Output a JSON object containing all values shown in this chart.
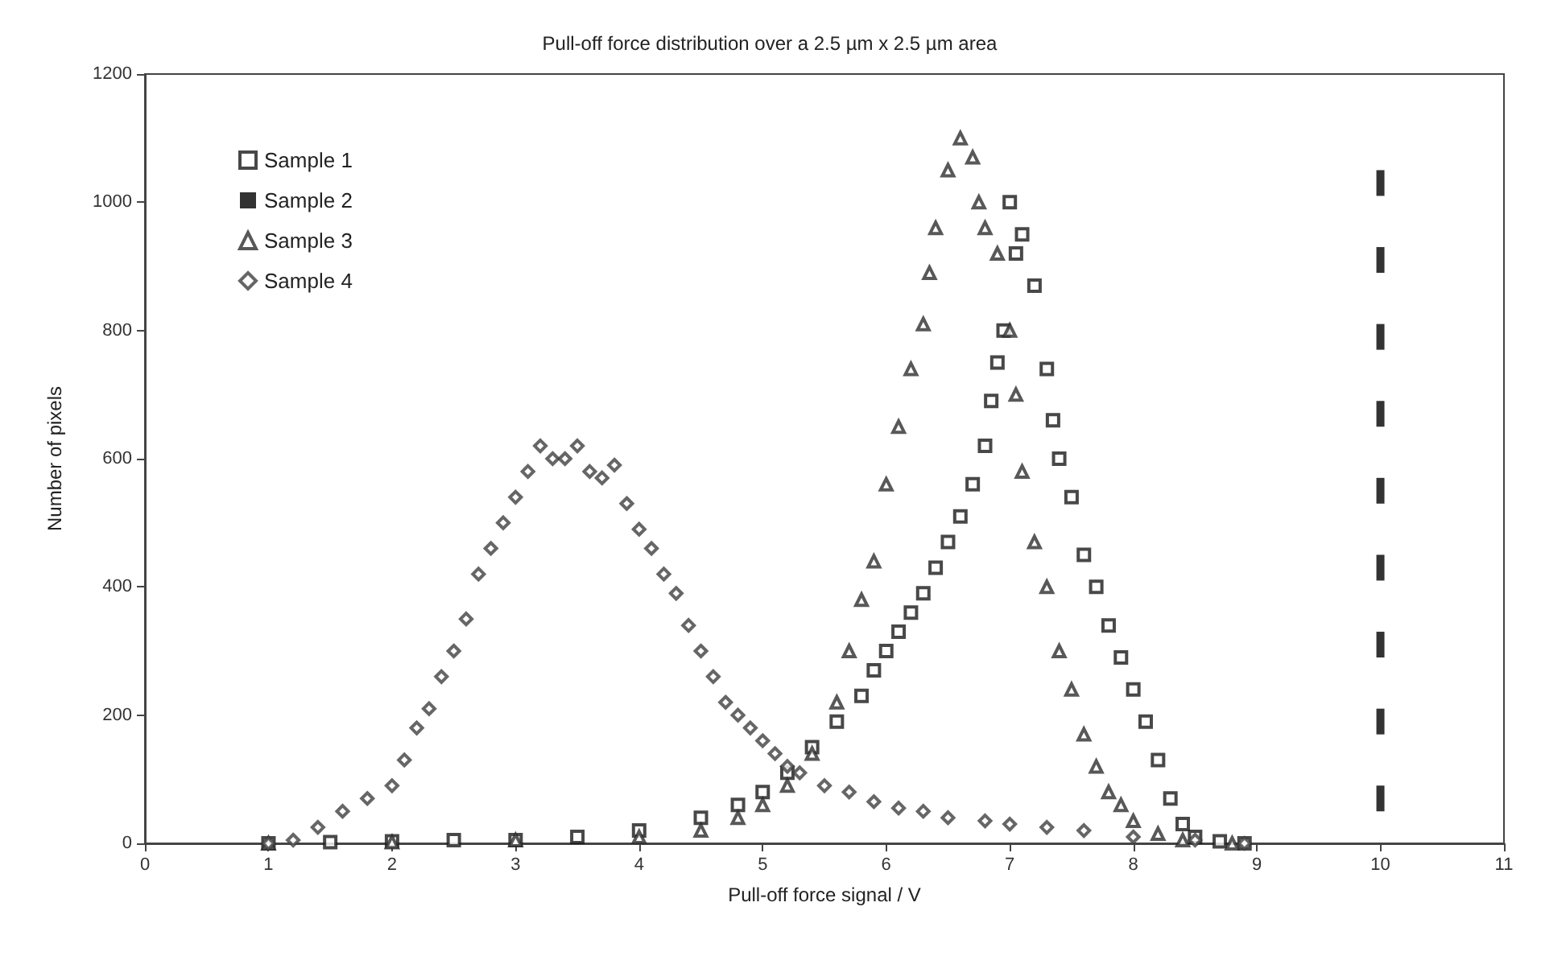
{
  "chart_data": {
    "type": "scatter",
    "title": "Pull-off force distribution over a 2.5 µm x 2.5 µm area",
    "xlabel": "Pull-off force signal / V",
    "ylabel": "Number of pixels",
    "xlim": [
      0,
      11
    ],
    "xticks": [
      0,
      1,
      2,
      3,
      4,
      5,
      6,
      7,
      8,
      9,
      10,
      11
    ],
    "ylim": [
      0,
      1200
    ],
    "yticks": [
      0,
      200,
      400,
      600,
      800,
      1000,
      1200
    ],
    "grid": false,
    "legend": "top left",
    "series": [
      {
        "name": "Sample 1",
        "color": "#1a1a1a",
        "marker": "square",
        "x": [
          1,
          1.5,
          2,
          2.5,
          3,
          3.5,
          4,
          4.5,
          4.8,
          5,
          5.2,
          5.4,
          5.6,
          5.8,
          5.9,
          6,
          6.1,
          6.2,
          6.3,
          6.4,
          6.5,
          6.6,
          6.7,
          6.8,
          6.85,
          6.9,
          6.95,
          7,
          7.05,
          7.1,
          7.2,
          7.3,
          7.35,
          7.4,
          7.5,
          7.6,
          7.7,
          7.8,
          7.9,
          8,
          8.1,
          8.2,
          8.3,
          8.4,
          8.5,
          8.7,
          8.9
        ],
        "values": [
          0,
          2,
          3,
          5,
          5,
          10,
          20,
          40,
          60,
          80,
          110,
          150,
          190,
          230,
          270,
          300,
          330,
          360,
          390,
          430,
          470,
          510,
          560,
          620,
          690,
          750,
          800,
          1000,
          920,
          950,
          870,
          740,
          660,
          600,
          540,
          450,
          400,
          340,
          290,
          240,
          190,
          130,
          70,
          30,
          10,
          3,
          0
        ]
      },
      {
        "name": "Sample 2",
        "color": "#000000",
        "x": [
          10,
          10,
          10,
          10,
          10,
          10,
          10,
          10,
          10
        ],
        "values": [
          1030,
          910,
          790,
          670,
          550,
          430,
          310,
          190,
          70
        ]
      },
      {
        "name": "Sample 3",
        "color": "#2e2e2e",
        "marker": "triangle",
        "x": [
          1,
          2,
          3,
          4,
          4.5,
          4.8,
          5,
          5.2,
          5.4,
          5.6,
          5.7,
          5.8,
          5.9,
          6,
          6.1,
          6.2,
          6.3,
          6.35,
          6.4,
          6.5,
          6.6,
          6.7,
          6.75,
          6.8,
          6.9,
          7,
          7.05,
          7.1,
          7.2,
          7.3,
          7.4,
          7.5,
          7.6,
          7.7,
          7.8,
          7.9,
          8,
          8.2,
          8.4,
          8.8
        ],
        "values": [
          0,
          2,
          5,
          10,
          20,
          40,
          60,
          90,
          140,
          220,
          300,
          380,
          440,
          560,
          650,
          740,
          810,
          890,
          960,
          1050,
          1100,
          1070,
          1000,
          960,
          920,
          800,
          700,
          580,
          470,
          400,
          300,
          240,
          170,
          120,
          80,
          60,
          35,
          15,
          5,
          0
        ]
      },
      {
        "name": "Sample 4",
        "color": "#404040",
        "marker": "diamond",
        "x": [
          1,
          1.2,
          1.4,
          1.6,
          1.8,
          2,
          2.1,
          2.2,
          2.3,
          2.4,
          2.5,
          2.6,
          2.7,
          2.8,
          2.9,
          3,
          3.1,
          3.2,
          3.3,
          3.4,
          3.5,
          3.6,
          3.7,
          3.8,
          3.9,
          4,
          4.1,
          4.2,
          4.3,
          4.4,
          4.5,
          4.6,
          4.7,
          4.8,
          4.9,
          5,
          5.1,
          5.2,
          5.3,
          5.5,
          5.7,
          5.9,
          6.1,
          6.3,
          6.5,
          6.8,
          7,
          7.3,
          7.6,
          8,
          8.5,
          8.9
        ],
        "values": [
          0,
          5,
          25,
          50,
          70,
          90,
          130,
          180,
          210,
          260,
          300,
          350,
          420,
          460,
          500,
          540,
          580,
          620,
          600,
          600,
          620,
          580,
          570,
          590,
          530,
          490,
          460,
          420,
          390,
          340,
          300,
          260,
          220,
          200,
          180,
          160,
          140,
          120,
          110,
          90,
          80,
          65,
          55,
          50,
          40,
          35,
          30,
          25,
          20,
          10,
          5,
          0
        ]
      }
    ]
  }
}
